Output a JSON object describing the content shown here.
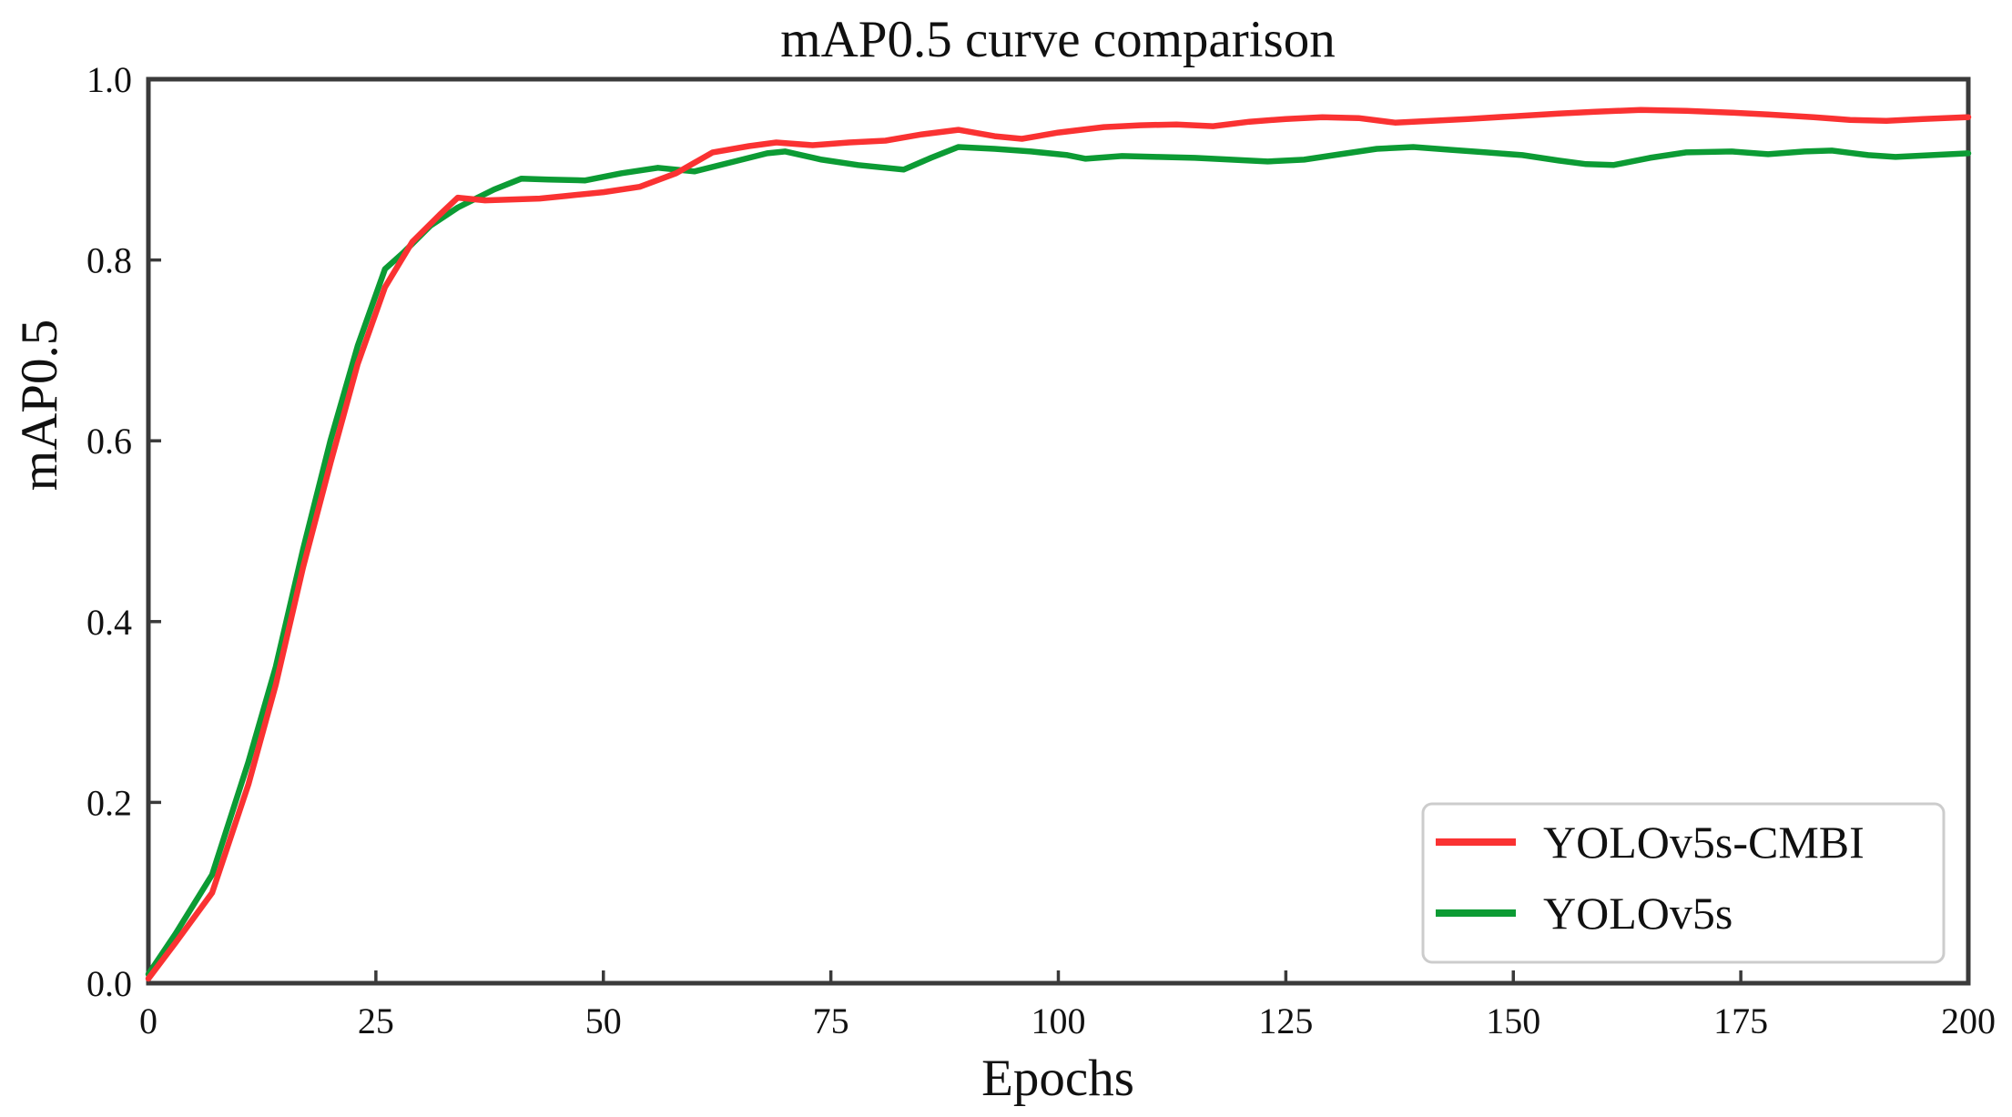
{
  "figure": {
    "kind": "line-chart-figure"
  },
  "chart_data": {
    "type": "line",
    "title": "mAP0.5 curve comparison",
    "xlabel": "Epochs",
    "ylabel": "mAP0.5",
    "xlim": [
      0,
      200
    ],
    "ylim": [
      0.0,
      1.0
    ],
    "x_ticks": [
      0,
      25,
      50,
      75,
      100,
      125,
      150,
      175,
      200
    ],
    "y_ticks": [
      0.0,
      0.2,
      0.4,
      0.6,
      0.8,
      1.0
    ],
    "grid": false,
    "legend_position": "lower right",
    "frame_color": "#3a3a3a",
    "series": [
      {
        "name": "YOLOv5s-CMBI",
        "color": "#fa3232",
        "x": [
          0,
          3,
          7,
          11,
          14,
          17,
          20,
          23,
          26,
          29,
          32,
          34,
          37,
          40,
          43,
          46,
          50,
          54,
          58,
          62,
          66,
          69,
          73,
          77,
          81,
          85,
          89,
          93,
          96,
          100,
          105,
          109,
          113,
          117,
          121,
          125,
          129,
          133,
          137,
          141,
          145,
          150,
          155,
          159,
          164,
          169,
          174,
          178,
          183,
          187,
          191,
          195,
          200
        ],
        "y": [
          0.005,
          0.045,
          0.1,
          0.22,
          0.33,
          0.46,
          0.575,
          0.685,
          0.77,
          0.82,
          0.85,
          0.869,
          0.866,
          0.867,
          0.868,
          0.871,
          0.875,
          0.881,
          0.896,
          0.919,
          0.926,
          0.93,
          0.927,
          0.93,
          0.932,
          0.939,
          0.944,
          0.937,
          0.934,
          0.941,
          0.947,
          0.949,
          0.95,
          0.948,
          0.953,
          0.956,
          0.958,
          0.957,
          0.952,
          0.954,
          0.956,
          0.959,
          0.962,
          0.964,
          0.966,
          0.965,
          0.963,
          0.961,
          0.958,
          0.955,
          0.954,
          0.956,
          0.958
        ]
      },
      {
        "name": "YOLOv5s",
        "color": "#0c9b34",
        "x": [
          0,
          3,
          7,
          11,
          14,
          17,
          20,
          23,
          26,
          28,
          31,
          34,
          38,
          41,
          44,
          48,
          52,
          56,
          60,
          64,
          68,
          70,
          74,
          78,
          81,
          83,
          86,
          89,
          93,
          97,
          101,
          103,
          107,
          111,
          115,
          119,
          123,
          127,
          131,
          135,
          139,
          143,
          147,
          151,
          155,
          158,
          161,
          165,
          169,
          174,
          178,
          182,
          185,
          189,
          192,
          196,
          200
        ],
        "y": [
          0.01,
          0.055,
          0.12,
          0.245,
          0.35,
          0.48,
          0.6,
          0.705,
          0.79,
          0.808,
          0.838,
          0.858,
          0.878,
          0.89,
          0.889,
          0.888,
          0.896,
          0.902,
          0.898,
          0.908,
          0.918,
          0.92,
          0.911,
          0.905,
          0.902,
          0.9,
          0.913,
          0.925,
          0.923,
          0.92,
          0.916,
          0.912,
          0.915,
          0.914,
          0.913,
          0.911,
          0.909,
          0.911,
          0.917,
          0.923,
          0.925,
          0.922,
          0.919,
          0.916,
          0.91,
          0.906,
          0.905,
          0.913,
          0.919,
          0.92,
          0.917,
          0.92,
          0.921,
          0.916,
          0.914,
          0.916,
          0.918
        ]
      }
    ]
  }
}
